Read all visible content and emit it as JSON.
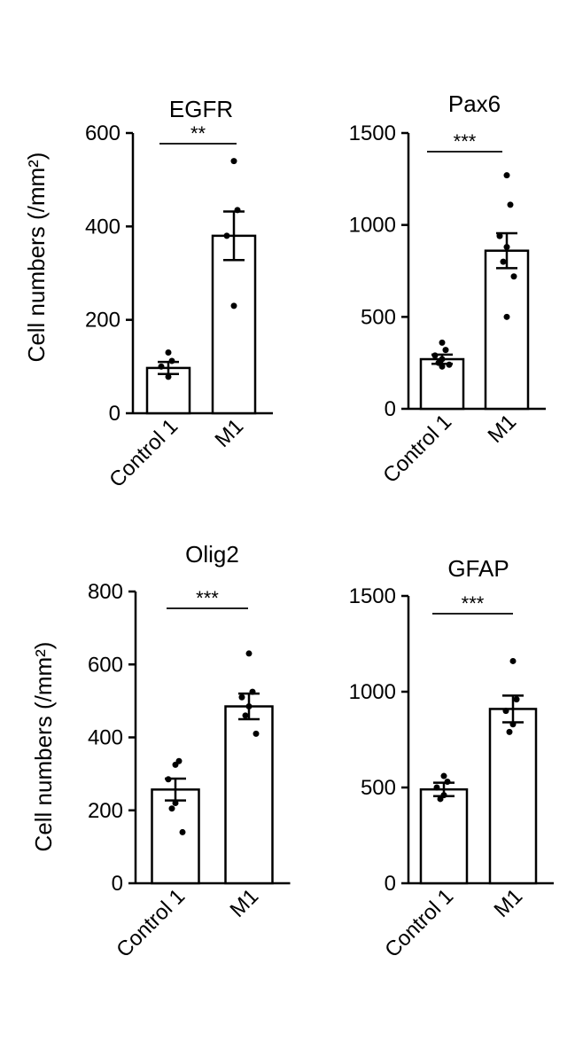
{
  "chart_data": [
    {
      "type": "bar",
      "title": "EGFR",
      "ylabel": "Cell numbers (/mm²)",
      "categories": [
        "Control 1",
        "M1"
      ],
      "values": [
        97,
        380
      ],
      "errors": [
        13,
        52
      ],
      "points": [
        [
          130,
          112,
          100,
          78
        ],
        [
          540,
          435,
          380,
          230
        ]
      ],
      "ylim": [
        0,
        600
      ],
      "yticks": [
        0,
        200,
        400,
        600
      ],
      "significance": "**"
    },
    {
      "type": "bar",
      "title": "Pax6",
      "ylabel": "",
      "categories": [
        "Control 1",
        "M1"
      ],
      "values": [
        270,
        860
      ],
      "errors": [
        25,
        95
      ],
      "points": [
        [
          360,
          320,
          290,
          270,
          250,
          240,
          230
        ],
        [
          1270,
          1110,
          940,
          880,
          800,
          720,
          500
        ]
      ],
      "ylim": [
        0,
        1500
      ],
      "yticks": [
        0,
        500,
        1000,
        1500
      ],
      "significance": "***"
    },
    {
      "type": "bar",
      "title": "Olig2",
      "ylabel": "Cell numbers (/mm²)",
      "categories": [
        "Control 1",
        "M1"
      ],
      "values": [
        257,
        485
      ],
      "errors": [
        30,
        35
      ],
      "points": [
        [
          325,
          335,
          285,
          220,
          205,
          140
        ],
        [
          630,
          525,
          510,
          485,
          460,
          410
        ]
      ],
      "ylim": [
        0,
        800
      ],
      "yticks": [
        0,
        200,
        400,
        600,
        800
      ],
      "significance": "***"
    },
    {
      "type": "bar",
      "title": "GFAP",
      "ylabel": "",
      "categories": [
        "Control 1",
        "M1"
      ],
      "values": [
        490,
        910
      ],
      "errors": [
        35,
        70
      ],
      "points": [
        [
          560,
          530,
          500,
          460,
          440
        ],
        [
          1160,
          960,
          900,
          830,
          790
        ]
      ],
      "ylim": [
        0,
        1500
      ],
      "yticks": [
        0,
        500,
        1000,
        1500
      ],
      "significance": "***"
    }
  ]
}
